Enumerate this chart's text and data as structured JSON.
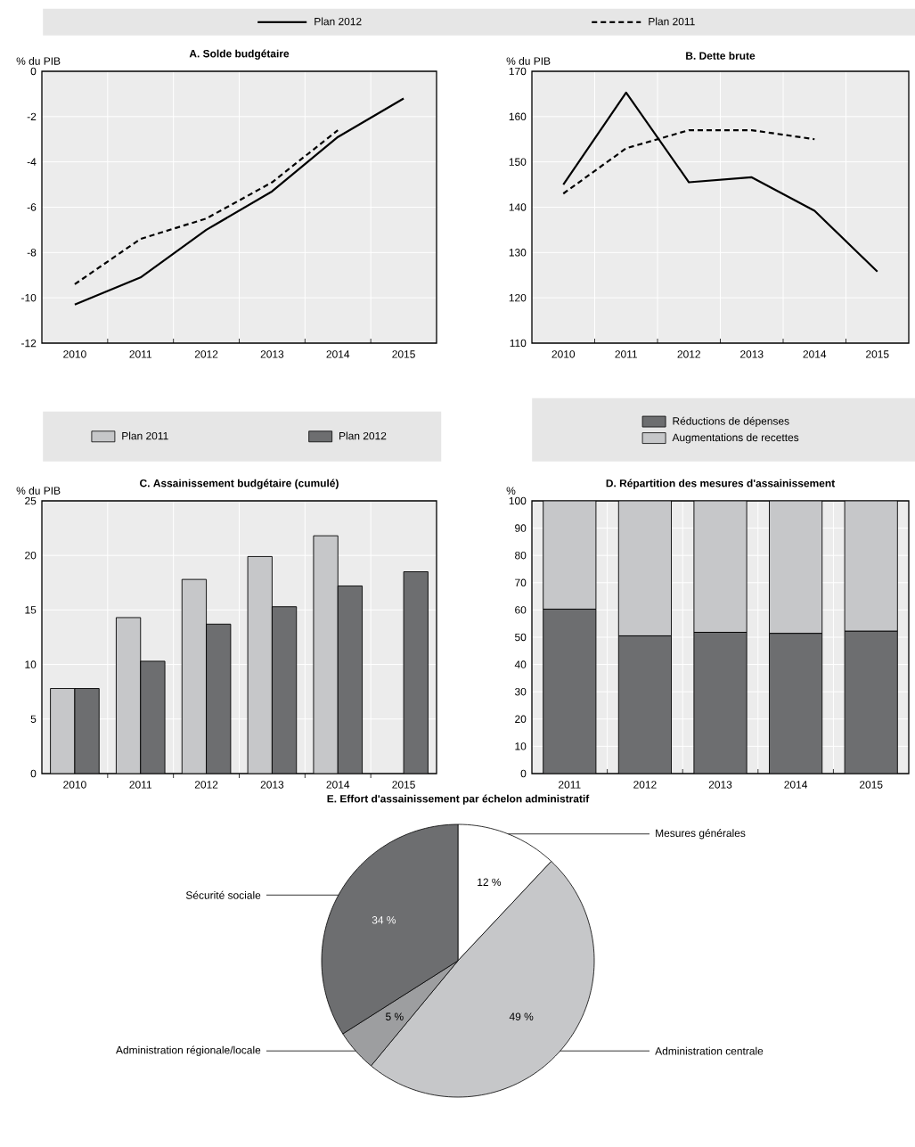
{
  "chart_data": [
    {
      "type": "line",
      "title": "A. Solde budgétaire",
      "ylabel": "% du PIB",
      "categories": [
        "2010",
        "2011",
        "2012",
        "2013",
        "2014",
        "2015"
      ],
      "series": [
        {
          "name": "Plan 2012",
          "color": "#000000",
          "line_style": "solid",
          "values": [
            -10.3,
            -9.1,
            -7.0,
            -5.3,
            -2.9,
            -1.2
          ]
        },
        {
          "name": "Plan 2011",
          "color": "#000000",
          "line_style": "dashed",
          "values": [
            -9.4,
            -7.4,
            -6.5,
            -4.9,
            -2.6,
            null
          ]
        }
      ],
      "ylim": [
        -12,
        0
      ],
      "yticks": [
        -12,
        -10,
        -8,
        -6,
        -4,
        -2,
        0
      ],
      "grid": true,
      "legend": "top"
    },
    {
      "type": "line",
      "title": "B. Dette brute",
      "ylabel": "% du PIB",
      "categories": [
        "2010",
        "2011",
        "2012",
        "2013",
        "2014",
        "2015"
      ],
      "series": [
        {
          "color": "#000000",
          "line_style": "solid",
          "values": [
            145,
            165.3,
            145.5,
            146.6,
            139.2,
            125.8
          ]
        },
        {
          "color": "#000000",
          "line_style": "dashed",
          "values": [
            143,
            153,
            157,
            157,
            155,
            null
          ]
        }
      ],
      "ylim": [
        110,
        170
      ],
      "yticks": [
        110,
        120,
        130,
        140,
        150,
        160,
        170
      ],
      "grid": true
    },
    {
      "type": "bar",
      "title": "C. Assainissement budgétaire (cumulé)",
      "ylabel": "% du PIB",
      "categories": [
        "2010",
        "2011",
        "2012",
        "2013",
        "2014",
        "2015"
      ],
      "series": [
        {
          "name": "Plan 2011",
          "color": "#c6c7c9",
          "values": [
            7.8,
            14.3,
            17.8,
            19.9,
            21.8,
            null
          ]
        },
        {
          "name": "Plan 2012",
          "color": "#6d6e70",
          "values": [
            7.8,
            10.3,
            13.7,
            15.3,
            17.2,
            18.5
          ]
        }
      ],
      "ylim": [
        0,
        25
      ],
      "yticks": [
        0,
        5,
        10,
        15,
        20,
        25
      ],
      "grid": true,
      "legend": "top"
    },
    {
      "type": "bar",
      "stacked": true,
      "title": "D. Répartition des mesures d'assainissement",
      "ylabel": "%",
      "categories": [
        "2011",
        "2012",
        "2013",
        "2014",
        "2015"
      ],
      "series": [
        {
          "name": "Réductions de dépenses",
          "color": "#6d6e70",
          "values": [
            60.3,
            50.5,
            51.8,
            51.4,
            52.2
          ]
        },
        {
          "name": "Augmentations de recettes",
          "color": "#c6c7c9",
          "values": [
            39.7,
            49.5,
            48.2,
            48.6,
            47.8
          ]
        }
      ],
      "ylim": [
        0,
        100
      ],
      "yticks": [
        0,
        10,
        20,
        30,
        40,
        50,
        60,
        70,
        80,
        90,
        100
      ],
      "grid": true,
      "legend": "top"
    },
    {
      "type": "pie",
      "title": "E. Effort d'assainissement par échelon administratif",
      "categories": [
        "Mesures générales",
        "Administration centrale",
        "Administration régionale/locale",
        "Sécurité sociale"
      ],
      "values": [
        12,
        49,
        5,
        34
      ],
      "colors": [
        "#ffffff",
        "#c6c7c9",
        "#9d9ea0",
        "#6d6e70"
      ],
      "value_labels": [
        "12 %",
        "49 %",
        "5 %",
        "34 %"
      ]
    }
  ]
}
